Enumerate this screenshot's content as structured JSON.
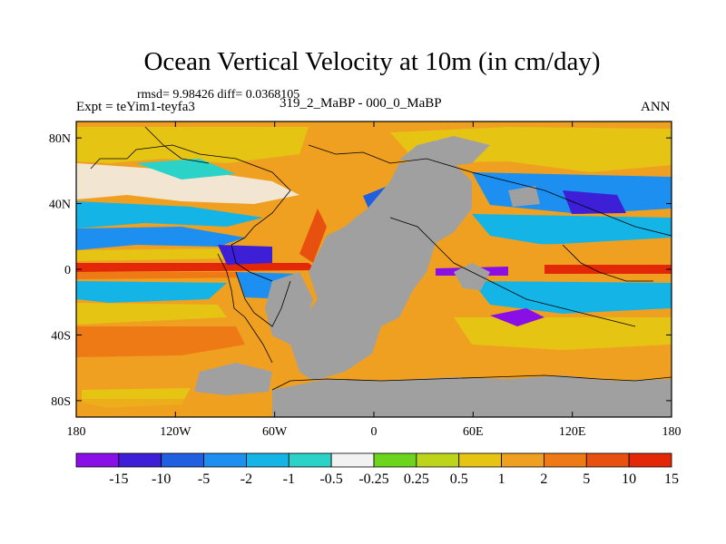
{
  "title": "Ocean Vertical Velocity at 10m (in cm/day)",
  "stats": "rmsd= 9.98426  diff= 0.0368105",
  "experiment": "Expt = teYim1-teyfa3",
  "period": "319_2_MaBP - 000_0_MaBP",
  "season": "ANN",
  "map": {
    "lon_range": [
      -180,
      180
    ],
    "lat_range": [
      -90,
      90
    ],
    "lat_ticks": [
      {
        "value": 80,
        "label": "80N"
      },
      {
        "value": 40,
        "label": "40N"
      },
      {
        "value": 0,
        "label": "0"
      },
      {
        "value": -40,
        "label": "40S"
      },
      {
        "value": -80,
        "label": "80S"
      }
    ],
    "lon_ticks": [
      {
        "value": -180,
        "label": "180"
      },
      {
        "value": -120,
        "label": "120W"
      },
      {
        "value": -60,
        "label": "60W"
      },
      {
        "value": 0,
        "label": "0"
      },
      {
        "value": 60,
        "label": "60E"
      },
      {
        "value": 120,
        "label": "120E"
      },
      {
        "value": 180,
        "label": "180"
      }
    ],
    "land_color": "#a0a0a0",
    "ocean_background": "#f0a020"
  },
  "colorbar": {
    "colors": [
      "#8a0fe6",
      "#3c1fd6",
      "#1f5fe0",
      "#1c8ff0",
      "#14b4e6",
      "#2ad2c8",
      "#f2f2f2",
      "#6cd41c",
      "#bcd41a",
      "#e6c414",
      "#f0a020",
      "#ee7a16",
      "#e85010",
      "#e22806"
    ],
    "levels": [
      "-15",
      "-10",
      "-5",
      "-2",
      "-1",
      "-0.5",
      "-0.25",
      "0.25",
      "0.5",
      "1",
      "2",
      "5",
      "10",
      "15"
    ]
  }
}
